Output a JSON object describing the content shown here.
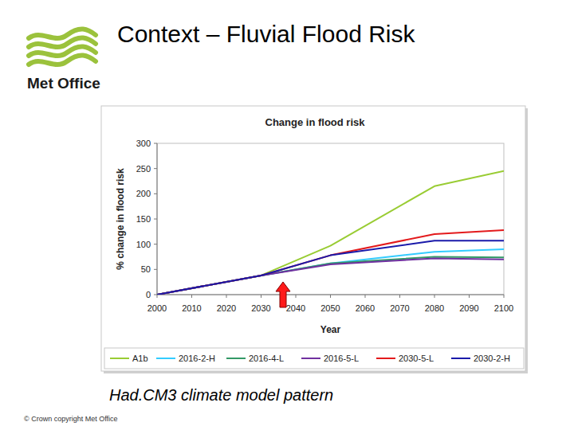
{
  "slide": {
    "title": "Context – Fluvial Flood Risk",
    "logo_text": "Met Office",
    "caption": "Had.CM3 climate model pattern",
    "footer": "© Crown copyright   Met Office"
  },
  "chart_data": {
    "type": "line",
    "title": "Change in flood risk",
    "x_label": "Year",
    "y_label": "% change in flood risk",
    "x": [
      2000,
      2030,
      2050,
      2080,
      2100
    ],
    "xlim": [
      2000,
      2100
    ],
    "xticks": [
      2000,
      2010,
      2020,
      2030,
      2040,
      2050,
      2060,
      2070,
      2080,
      2090,
      2100
    ],
    "ylim": [
      0,
      300
    ],
    "yticks": [
      0,
      50,
      100,
      150,
      200,
      250,
      300
    ],
    "grid": false,
    "legend": "bottom",
    "series": [
      {
        "name": "A1b",
        "color": "#99cc33",
        "values": [
          0,
          38,
          97,
          215,
          245
        ]
      },
      {
        "name": "2016-2-H",
        "color": "#33ccff",
        "values": [
          0,
          38,
          62,
          85,
          90
        ]
      },
      {
        "name": "2016-4-L",
        "color": "#339966",
        "values": [
          0,
          38,
          62,
          75,
          74
        ]
      },
      {
        "name": "2016-5-L",
        "color": "#7030a0",
        "values": [
          0,
          38,
          60,
          72,
          70
        ]
      },
      {
        "name": "2030-5-L",
        "color": "#e31a1c",
        "values": [
          0,
          38,
          78,
          120,
          128
        ]
      },
      {
        "name": "2030-2-H",
        "color": "#1a1aaa",
        "values": [
          0,
          38,
          78,
          107,
          107
        ]
      }
    ]
  }
}
